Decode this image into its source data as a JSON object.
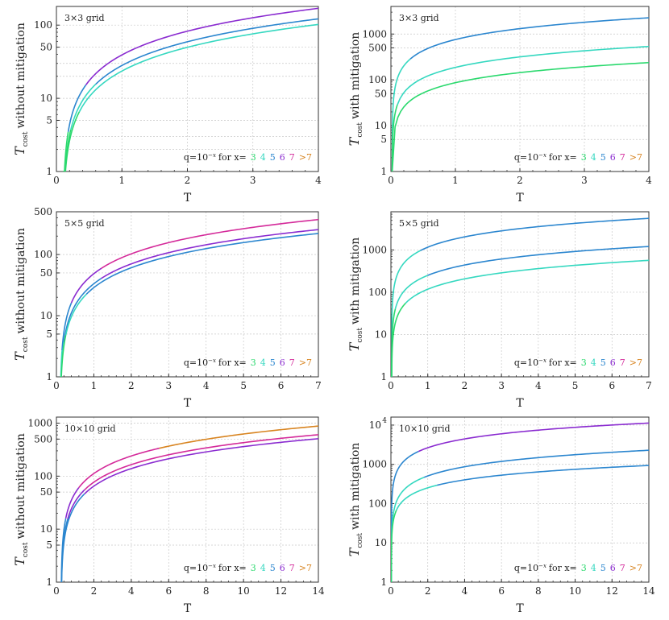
{
  "colors": {
    "x3": "#2bd96e",
    "x4": "#35d8c0",
    "x5": "#2b86cf",
    "x6": "#8a2bd0",
    "x7": "#d42a9a",
    "gt7": "#d88420",
    "grid": "#c8c8c8",
    "axis": "#333333"
  },
  "legend": {
    "prefix": "q=10",
    "prefix_exp": "−x",
    "middle": "for x=",
    "labels": [
      {
        "text": "3",
        "key": "x3"
      },
      {
        "text": "4",
        "key": "x4"
      },
      {
        "text": "5",
        "key": "x5"
      },
      {
        "text": "6",
        "key": "x6"
      },
      {
        "text": "7",
        "key": "x7"
      },
      {
        "text": ">7",
        "key": "gt7"
      }
    ]
  },
  "chart_data": [
    {
      "type": "line",
      "yscale": "log",
      "panel_label": "3×3 grid",
      "xlabel": "T",
      "ylabel_main": "T",
      "ylabel_sub": "cost",
      "ylabel_rest": "without mitigation",
      "xlim": [
        0,
        4
      ],
      "ylim": [
        1,
        180
      ],
      "xticks": [
        {
          "v": 0,
          "label": "0"
        },
        {
          "v": 1,
          "label": "1"
        },
        {
          "v": 2,
          "label": "2"
        },
        {
          "v": 3,
          "label": "3"
        },
        {
          "v": 4,
          "label": "4"
        }
      ],
      "yticks": [
        {
          "v": 1,
          "label": "1"
        },
        {
          "v": 5,
          "label": "5"
        },
        {
          "v": 10,
          "label": "10"
        },
        {
          "v": 50,
          "label": "50"
        },
        {
          "v": 100,
          "label": "100"
        }
      ],
      "ygrid": [
        2,
        3,
        5,
        10,
        20,
        30,
        50,
        100
      ],
      "series": [
        {
          "name": "upper",
          "t0": 0.1,
          "A": 43.5,
          "p": 1.0,
          "segments": [
            {
              "to": 0.18,
              "key": "x3"
            },
            {
              "to": 0.45,
              "key": "x5"
            },
            {
              "to": 4,
              "key": "x6"
            }
          ]
        },
        {
          "name": "middle",
          "t0": 0.1,
          "A": 31.2,
          "p": 1.0,
          "segments": [
            {
              "to": 0.22,
              "key": "x3"
            },
            {
              "to": 0.6,
              "key": "x4"
            },
            {
              "to": 4,
              "key": "x5"
            }
          ]
        },
        {
          "name": "lower",
          "t0": 0.1,
          "A": 26.2,
          "p": 1.0,
          "segments": [
            {
              "to": 0.35,
              "key": "x3"
            },
            {
              "to": 4,
              "key": "x4"
            }
          ]
        }
      ]
    },
    {
      "type": "line",
      "yscale": "log",
      "panel_label": "3×3 grid",
      "xlabel": "T",
      "ylabel_main": "T",
      "ylabel_sub": "cost",
      "ylabel_rest": "with mitigation",
      "xlim": [
        0,
        4
      ],
      "ylim": [
        1,
        4000
      ],
      "xticks": [
        {
          "v": 0,
          "label": "0"
        },
        {
          "v": 1,
          "label": "1"
        },
        {
          "v": 2,
          "label": "2"
        },
        {
          "v": 3,
          "label": "3"
        },
        {
          "v": 4,
          "label": "4"
        }
      ],
      "yticks": [
        {
          "v": 1,
          "label": "1"
        },
        {
          "v": 5,
          "label": "5"
        },
        {
          "v": 10,
          "label": "10"
        },
        {
          "v": 50,
          "label": "50"
        },
        {
          "v": 100,
          "label": "100"
        },
        {
          "v": 500,
          "label": "500"
        },
        {
          "v": 1000,
          "label": "1000"
        }
      ],
      "ygrid": [
        5,
        10,
        50,
        100,
        500,
        1000
      ],
      "series": [
        {
          "name": "upper",
          "t0": 0.02,
          "A": 770,
          "p": 0.78,
          "segments": [
            {
              "to": 0.3,
              "key": "x4"
            },
            {
              "to": 4,
              "key": "x5"
            }
          ]
        },
        {
          "name": "middle",
          "t0": 0.02,
          "A": 190,
          "p": 0.75,
          "segments": [
            {
              "to": 0.1,
              "key": "x3"
            },
            {
              "to": 4,
              "key": "x4"
            }
          ]
        },
        {
          "name": "lower",
          "t0": 0.02,
          "A": 88,
          "p": 0.72,
          "segments": [
            {
              "to": 4,
              "key": "x3"
            }
          ]
        }
      ]
    },
    {
      "type": "line",
      "yscale": "log",
      "panel_label": "5×5 grid",
      "xlabel": "T",
      "ylabel_main": "T",
      "ylabel_sub": "cost",
      "ylabel_rest": "without mitigation",
      "xlim": [
        0,
        7
      ],
      "ylim": [
        1,
        500
      ],
      "xticks": [
        {
          "v": 0,
          "label": "0"
        },
        {
          "v": 1,
          "label": "1"
        },
        {
          "v": 2,
          "label": "2"
        },
        {
          "v": 3,
          "label": "3"
        },
        {
          "v": 4,
          "label": "4"
        },
        {
          "v": 5,
          "label": "5"
        },
        {
          "v": 6,
          "label": "6"
        },
        {
          "v": 7,
          "label": "7"
        }
      ],
      "yticks": [
        {
          "v": 1,
          "label": "1"
        },
        {
          "v": 5,
          "label": "5"
        },
        {
          "v": 10,
          "label": "10"
        },
        {
          "v": 50,
          "label": "50"
        },
        {
          "v": 100,
          "label": "100"
        },
        {
          "v": 500,
          "label": "500"
        }
      ],
      "ygrid": [
        5,
        10,
        50,
        100,
        500
      ],
      "series": [
        {
          "name": "upper",
          "t0": 0.1,
          "A": 54,
          "p": 1.0,
          "segments": [
            {
              "to": 0.15,
              "key": "x4"
            },
            {
              "to": 0.4,
              "key": "x5"
            },
            {
              "to": 1.2,
              "key": "x6"
            },
            {
              "to": 7,
              "key": "x7"
            }
          ]
        },
        {
          "name": "middle",
          "t0": 0.1,
          "A": 37,
          "p": 1.0,
          "segments": [
            {
              "to": 0.2,
              "key": "x4"
            },
            {
              "to": 1.2,
              "key": "x5"
            },
            {
              "to": 7,
              "key": "x6"
            }
          ]
        },
        {
          "name": "lower",
          "t0": 0.1,
          "A": 32,
          "p": 1.0,
          "segments": [
            {
              "to": 0.25,
              "key": "x3"
            },
            {
              "to": 0.8,
              "key": "x4"
            },
            {
              "to": 7,
              "key": "x5"
            }
          ]
        }
      ]
    },
    {
      "type": "line",
      "yscale": "log",
      "panel_label": "5×5 grid",
      "xlabel": "T",
      "ylabel_main": "T",
      "ylabel_sub": "cost",
      "ylabel_rest": "with mitigation",
      "xlim": [
        0,
        7
      ],
      "ylim": [
        1,
        8000
      ],
      "xticks": [
        {
          "v": 0,
          "label": "0"
        },
        {
          "v": 1,
          "label": "1"
        },
        {
          "v": 2,
          "label": "2"
        },
        {
          "v": 3,
          "label": "3"
        },
        {
          "v": 4,
          "label": "4"
        },
        {
          "v": 5,
          "label": "5"
        },
        {
          "v": 6,
          "label": "6"
        },
        {
          "v": 7,
          "label": "7"
        }
      ],
      "yticks": [
        {
          "v": 1,
          "label": "1"
        },
        {
          "v": 10,
          "label": "10"
        },
        {
          "v": 100,
          "label": "100"
        },
        {
          "v": 1000,
          "label": "1000"
        }
      ],
      "ygrid": [
        10,
        100,
        1000
      ],
      "series": [
        {
          "name": "upper",
          "t0": 0.02,
          "A": 1180,
          "p": 0.8,
          "segments": [
            {
              "to": 0.8,
              "key": "x4"
            },
            {
              "to": 7,
              "key": "x5"
            }
          ]
        },
        {
          "name": "middle",
          "t0": 0.02,
          "A": 255,
          "p": 0.8,
          "segments": [
            {
              "to": 0.12,
              "key": "x3"
            },
            {
              "to": 1.0,
              "key": "x4"
            },
            {
              "to": 7,
              "key": "x5"
            }
          ]
        },
        {
          "name": "lower",
          "t0": 0.02,
          "A": 120,
          "p": 0.8,
          "segments": [
            {
              "to": 0.4,
              "key": "x3"
            },
            {
              "to": 7,
              "key": "x4"
            }
          ]
        }
      ]
    },
    {
      "type": "line",
      "yscale": "log",
      "panel_label": "10×10 grid",
      "xlabel": "T",
      "ylabel_main": "T",
      "ylabel_sub": "cost",
      "ylabel_rest": "without mitigation",
      "xlim": [
        0,
        14
      ],
      "ylim": [
        1,
        1300
      ],
      "xticks": [
        {
          "v": 0,
          "label": "0"
        },
        {
          "v": 2,
          "label": "2"
        },
        {
          "v": 4,
          "label": "4"
        },
        {
          "v": 6,
          "label": "6"
        },
        {
          "v": 8,
          "label": "8"
        },
        {
          "v": 10,
          "label": "10"
        },
        {
          "v": 12,
          "label": "12"
        },
        {
          "v": 14,
          "label": "14"
        }
      ],
      "yticks": [
        {
          "v": 1,
          "label": "1"
        },
        {
          "v": 5,
          "label": "5"
        },
        {
          "v": 10,
          "label": "10"
        },
        {
          "v": 50,
          "label": "50"
        },
        {
          "v": 100,
          "label": "100"
        },
        {
          "v": 500,
          "label": "500"
        },
        {
          "v": 1000,
          "label": "1000"
        }
      ],
      "ygrid": [
        5,
        10,
        50,
        100,
        500,
        1000
      ],
      "series": [
        {
          "name": "upper",
          "t0": 0.25,
          "A": 64,
          "p": 1.0,
          "segments": [
            {
              "to": 0.5,
              "key": "x5"
            },
            {
              "to": 1.2,
              "key": "x6"
            },
            {
              "to": 5.5,
              "key": "x7"
            },
            {
              "to": 14,
              "key": "gt7"
            }
          ]
        },
        {
          "name": "middle",
          "t0": 0.25,
          "A": 44,
          "p": 1.0,
          "segments": [
            {
              "to": 0.6,
              "key": "x5"
            },
            {
              "to": 1.5,
              "key": "x6"
            },
            {
              "to": 14,
              "key": "x7"
            }
          ]
        },
        {
          "name": "lower",
          "t0": 0.25,
          "A": 37,
          "p": 1.0,
          "segments": [
            {
              "to": 1.5,
              "key": "x5"
            },
            {
              "to": 14,
              "key": "x6"
            }
          ]
        }
      ]
    },
    {
      "type": "line",
      "yscale": "log",
      "panel_label": "10×10 grid",
      "xlabel": "T",
      "ylabel_main": "T",
      "ylabel_sub": "cost",
      "ylabel_rest": "with mitigation",
      "xlim": [
        0,
        14
      ],
      "ylim": [
        1,
        16000
      ],
      "xticks": [
        {
          "v": 0,
          "label": "0"
        },
        {
          "v": 2,
          "label": "2"
        },
        {
          "v": 4,
          "label": "4"
        },
        {
          "v": 6,
          "label": "6"
        },
        {
          "v": 8,
          "label": "8"
        },
        {
          "v": 10,
          "label": "10"
        },
        {
          "v": 12,
          "label": "12"
        },
        {
          "v": 14,
          "label": "14"
        }
      ],
      "yticks": [
        {
          "v": 1,
          "label": "1"
        },
        {
          "v": 10,
          "label": "10"
        },
        {
          "v": 100,
          "label": "100"
        },
        {
          "v": 1000,
          "label": "1000"
        },
        {
          "v": 10000,
          "label": "10",
          "exp": "4"
        }
      ],
      "ygrid": [
        10,
        100,
        1000,
        10000
      ],
      "series": [
        {
          "name": "upper",
          "t0": 0.02,
          "A": 1600,
          "p": 0.74,
          "segments": [
            {
              "to": 1.5,
              "key": "x5"
            },
            {
              "to": 14,
              "key": "x6"
            }
          ]
        },
        {
          "name": "middle",
          "t0": 0.02,
          "A": 300,
          "p": 0.77,
          "segments": [
            {
              "to": 1.8,
              "key": "x4"
            },
            {
              "to": 14,
              "key": "x5"
            }
          ]
        },
        {
          "name": "lower",
          "t0": 0.02,
          "A": 160,
          "p": 0.67,
          "segments": [
            {
              "to": 0.3,
              "key": "x3"
            },
            {
              "to": 2.5,
              "key": "x4"
            },
            {
              "to": 14,
              "key": "x5"
            }
          ]
        }
      ]
    }
  ]
}
